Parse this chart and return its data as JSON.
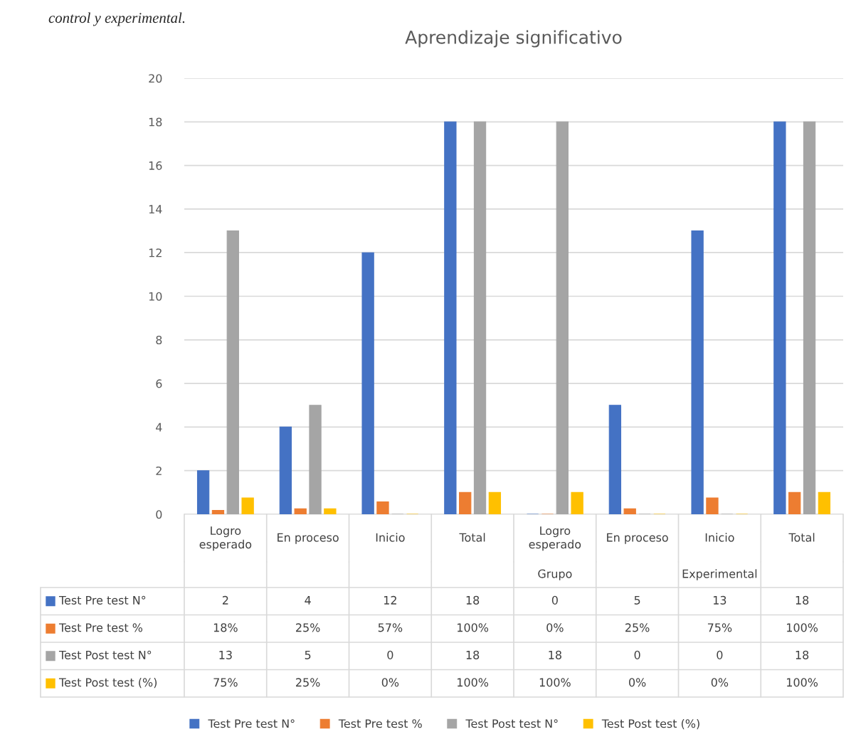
{
  "chart_data": {
    "type": "bar",
    "title": "Aprendizaje significativo",
    "categories": [
      "Logro\nesperado",
      "En proceso",
      "Inicio",
      "Total",
      "Logro\nesperado",
      "En proceso",
      "Inicio",
      "Total"
    ],
    "series": [
      {
        "name": "Test Pre test N°",
        "color": "#4472c4",
        "values": [
          2,
          4,
          12,
          18,
          0,
          5,
          13,
          18
        ],
        "value_labels": [
          "2",
          "4",
          "12",
          "18",
          "0",
          "5",
          "13",
          "18"
        ]
      },
      {
        "name": "Test Pre test %",
        "color": "#ed7d31",
        "values": [
          0.18,
          0.25,
          0.57,
          1,
          0,
          0.25,
          0.75,
          1
        ],
        "value_labels": [
          "18%",
          "25%",
          "57%",
          "100%",
          "0%",
          "25%",
          "75%",
          "100%"
        ]
      },
      {
        "name": "Test Post test N°",
        "color": "#a5a5a5",
        "values": [
          13,
          5,
          0,
          18,
          18,
          0,
          0,
          18
        ],
        "value_labels": [
          "13",
          "5",
          "0",
          "18",
          "18",
          "0",
          "0",
          "18"
        ]
      },
      {
        "name": "Test Post test (%)",
        "color": "#ffc000",
        "values": [
          0.75,
          0.25,
          0,
          1,
          1,
          0,
          0,
          1
        ],
        "value_labels": [
          "75%",
          "25%",
          "0%",
          "100%",
          "100%",
          "0%",
          "0%",
          "100%"
        ]
      }
    ],
    "ylim": [
      0,
      20
    ],
    "yticks": [
      0,
      2,
      4,
      6,
      8,
      10,
      12,
      14,
      16,
      18,
      20
    ],
    "grid": "y",
    "legend": "bottom",
    "annotations": [
      "control y experimental.",
      "Grupo",
      "Experimental"
    ]
  }
}
